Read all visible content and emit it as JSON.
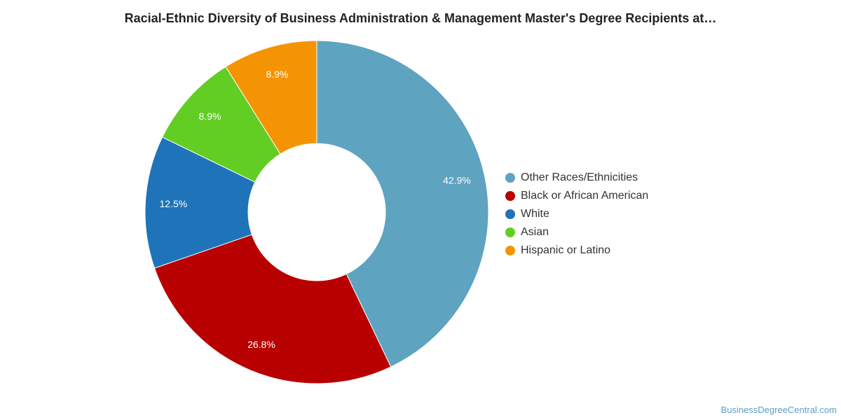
{
  "chart_data": {
    "type": "pie",
    "title": "Racial-Ethnic Diversity of Business Administration & Management Master's Degree Recipients at…",
    "donut": true,
    "legend_position": "right",
    "slices": [
      {
        "label": "Other Races/Ethnicities",
        "value": 42.9,
        "value_label": "42.9%",
        "color": "#5ea3c0"
      },
      {
        "label": "Black or African American",
        "value": 26.8,
        "value_label": "26.8%",
        "color": "#b80000"
      },
      {
        "label": "White",
        "value": 12.5,
        "value_label": "12.5%",
        "color": "#1f73b8"
      },
      {
        "label": "Asian",
        "value": 8.9,
        "value_label": "8.9%",
        "color": "#62cd23"
      },
      {
        "label": "Hispanic or Latino",
        "value": 8.9,
        "value_label": "8.9%",
        "color": "#f59402"
      }
    ]
  },
  "watermark": "BusinessDegreeCentral.com"
}
